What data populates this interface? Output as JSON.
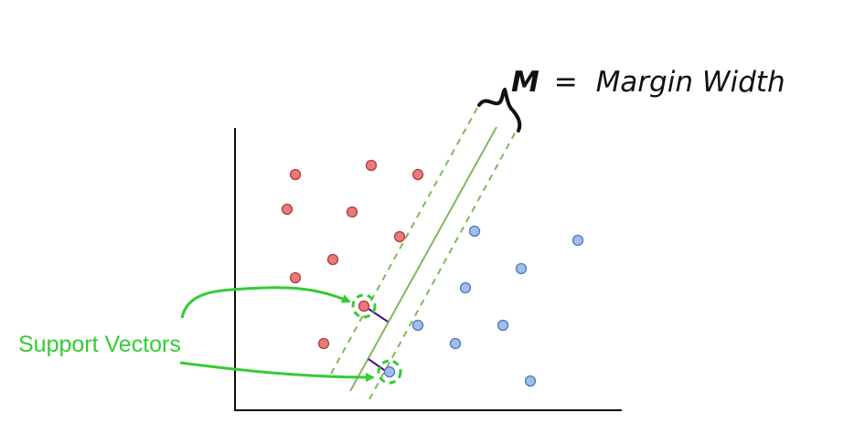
{
  "title": {
    "symbol": "M",
    "equals": "=",
    "text": "Margin Width"
  },
  "support_vectors_label": "Support Vectors",
  "colors": {
    "accent_green": "#33cc33",
    "margin_line": "#7fb85c",
    "class_a_fill": "#e87a7a",
    "class_a_stroke": "#b43c3c",
    "class_b_fill": "#9fbfe8",
    "class_b_stroke": "#4a78bb",
    "distance_segment": "#4b0f8c",
    "axis": "#111111"
  },
  "icons": {
    "margin_brace": "curly-brace-icon",
    "support_vector_highlight": "dashed-circle-icon"
  }
}
